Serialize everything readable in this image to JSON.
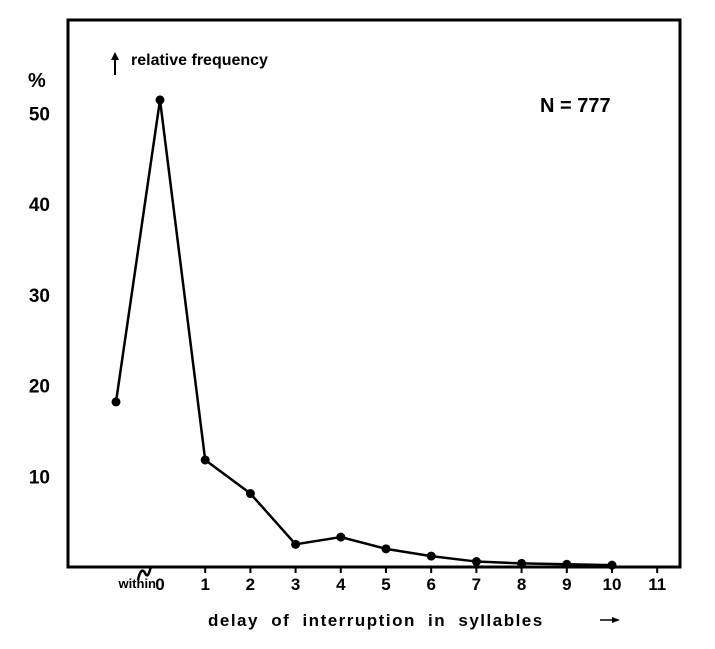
{
  "chart_data": {
    "type": "line",
    "ylabel": "relative frequency",
    "yunit": "%",
    "xlabel": "delay of interruption in syllables",
    "annotation": "N = 777",
    "x_categories": [
      "within",
      "0",
      "1",
      "2",
      "3",
      "4",
      "5",
      "6",
      "7",
      "8",
      "9",
      "10",
      "11"
    ],
    "y_ticks": [
      10,
      20,
      30,
      40,
      50
    ],
    "ylim": [
      0,
      58
    ],
    "series": [
      {
        "points": [
          {
            "x": "within",
            "y": 18.2
          },
          {
            "x": "0",
            "y": 51.5
          },
          {
            "x": "1",
            "y": 11.8
          },
          {
            "x": "2",
            "y": 8.1
          },
          {
            "x": "3",
            "y": 2.5
          },
          {
            "x": "4",
            "y": 3.3
          },
          {
            "x": "5",
            "y": 2.0
          },
          {
            "x": "6",
            "y": 1.2
          },
          {
            "x": "7",
            "y": 0.6
          },
          {
            "x": "8",
            "y": 0.4
          },
          {
            "x": "9",
            "y": 0.3
          },
          {
            "x": "10",
            "y": 0.2
          }
        ]
      }
    ],
    "grid": false,
    "axis_break": "between within and 0"
  }
}
